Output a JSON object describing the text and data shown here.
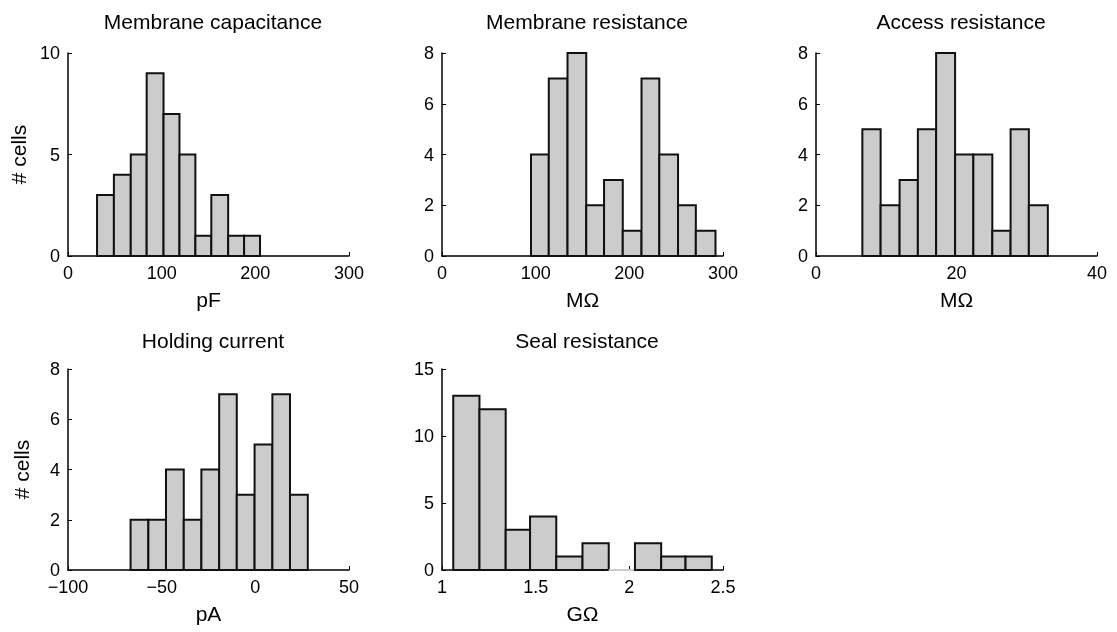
{
  "chart_data": [
    {
      "type": "histogram",
      "title": "Membrane capacitance",
      "xlabel": "pF",
      "ylabel": "# cells",
      "color": "#cccccc",
      "bins": [
        31,
        49,
        67,
        84,
        102,
        119,
        136,
        153,
        171,
        188,
        205
      ],
      "values": [
        3,
        4,
        5,
        9,
        7,
        5,
        1,
        3,
        1,
        1
      ],
      "xlim": [
        0,
        300
      ],
      "xticks": [
        0,
        100,
        200,
        300
      ],
      "ylim": [
        0,
        10
      ],
      "yticks": [
        0,
        5,
        10
      ],
      "grid": false
    },
    {
      "type": "histogram",
      "title": "Membrane resistance",
      "xlabel": "MΩ",
      "color": "#cccccc",
      "bins": [
        95,
        114,
        134,
        154,
        173,
        193,
        213,
        232,
        252,
        271,
        292
      ],
      "values": [
        4,
        7,
        8,
        2,
        3,
        1,
        7,
        4,
        2,
        1
      ],
      "xlim": [
        0,
        300
      ],
      "xticks": [
        0,
        100,
        200,
        300
      ],
      "ylim": [
        0,
        8
      ],
      "yticks": [
        0,
        2,
        4,
        6,
        8
      ],
      "grid": false
    },
    {
      "type": "histogram",
      "title": "Access resistance",
      "xlabel": "MΩ",
      "color": "#cccccc",
      "bins": [
        6.6,
        9.2,
        11.9,
        14.5,
        17.1,
        19.8,
        22.4,
        25.1,
        27.7,
        30.3,
        33.0
      ],
      "values": [
        5,
        2,
        3,
        5,
        8,
        4,
        4,
        1,
        5,
        2
      ],
      "xlim": [
        0,
        40
      ],
      "xticks": [
        0,
        20,
        40
      ],
      "ylim": [
        0,
        8
      ],
      "yticks": [
        0,
        2,
        4,
        6,
        8
      ],
      "grid": false
    },
    {
      "type": "histogram",
      "title": "Holding current",
      "xlabel": "pA",
      "ylabel": "# cells",
      "color": "#cccccc",
      "bins": [
        -66.6,
        -57.1,
        -47.7,
        -38.2,
        -28.8,
        -19.3,
        -9.9,
        -0.4,
        9.1,
        18.5,
        28.0
      ],
      "values": [
        2,
        2,
        4,
        2,
        4,
        7,
        3,
        5,
        7,
        3
      ],
      "xlim": [
        -100,
        50
      ],
      "xticks": [
        {
          "value": -100,
          "label": "−100"
        },
        {
          "value": -50,
          "label": "−50"
        },
        0,
        50
      ],
      "ylim": [
        0,
        8
      ],
      "yticks": [
        0,
        2,
        4,
        6,
        8
      ],
      "grid": false
    },
    {
      "type": "histogram",
      "title": "Seal resistance",
      "xlabel": "GΩ",
      "color": "#cccccc",
      "bins": [
        1.06,
        1.2,
        1.34,
        1.47,
        1.61,
        1.75,
        1.89,
        2.03,
        2.17,
        2.3,
        2.44
      ],
      "values": [
        13,
        12,
        3,
        4,
        1,
        2,
        0,
        2,
        1,
        1
      ],
      "xlim": [
        1,
        2.5
      ],
      "xticks": [
        1,
        1.5,
        2,
        2.5
      ],
      "ylim": [
        0,
        15
      ],
      "yticks": [
        0,
        5,
        10,
        15
      ],
      "grid": false
    }
  ]
}
